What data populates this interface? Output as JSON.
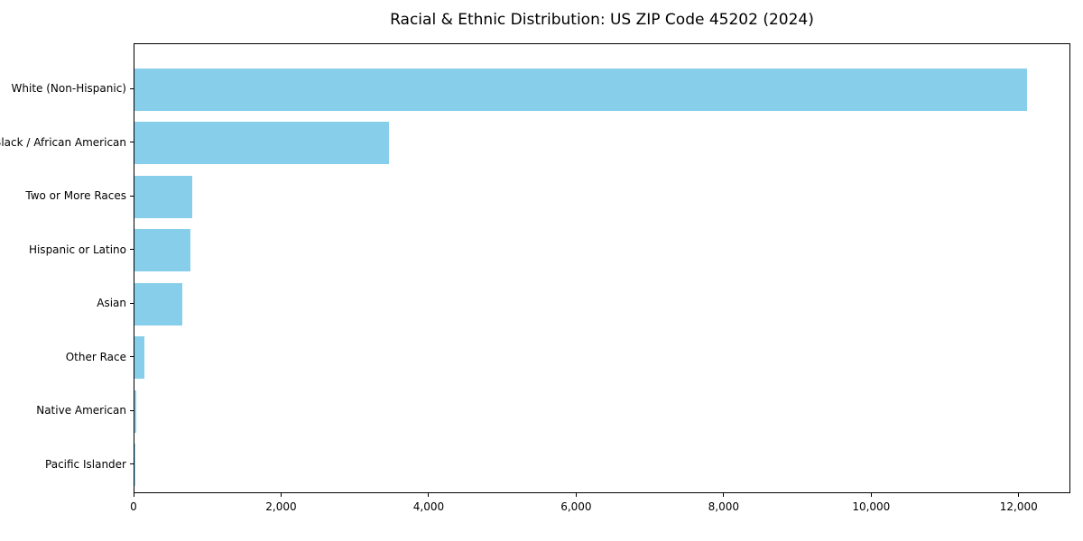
{
  "chart_data": {
    "type": "bar",
    "orientation": "horizontal",
    "title": "Racial & Ethnic Distribution: US ZIP Code 45202 (2024)",
    "categories": [
      "White (Non-Hispanic)",
      "Black / African American",
      "Two or More Races",
      "Hispanic or Latino",
      "Asian",
      "Other Race",
      "Native American",
      "Pacific Islander"
    ],
    "values": [
      12100,
      3450,
      780,
      760,
      650,
      130,
      20,
      5
    ],
    "xlabel": "",
    "ylabel": "",
    "xlim": [
      0,
      12700
    ],
    "x_ticks": [
      0,
      2000,
      4000,
      6000,
      8000,
      10000,
      12000
    ],
    "x_tick_labels": [
      "0",
      "2,000",
      "4,000",
      "6,000",
      "8,000",
      "10,000",
      "12,000"
    ],
    "bar_color": "#87CEEB",
    "background": "#ffffff",
    "text_color": "#000000",
    "grid": false,
    "legend": "none"
  }
}
